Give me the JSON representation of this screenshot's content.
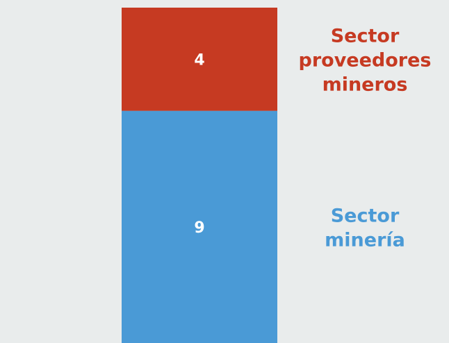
{
  "chart_data": {
    "type": "bar",
    "stacked": true,
    "categories": [
      ""
    ],
    "series": [
      {
        "name": "Sector minería",
        "values": [
          9
        ],
        "color": "#4a9ad6",
        "label_color": "#4a9ad6"
      },
      {
        "name": "Sector proveedores mineros",
        "values": [
          4
        ],
        "color": "#c63a22",
        "label_color": "#c63a22"
      }
    ],
    "value_label_color": "#ffffff",
    "background": "#e9ecec"
  }
}
